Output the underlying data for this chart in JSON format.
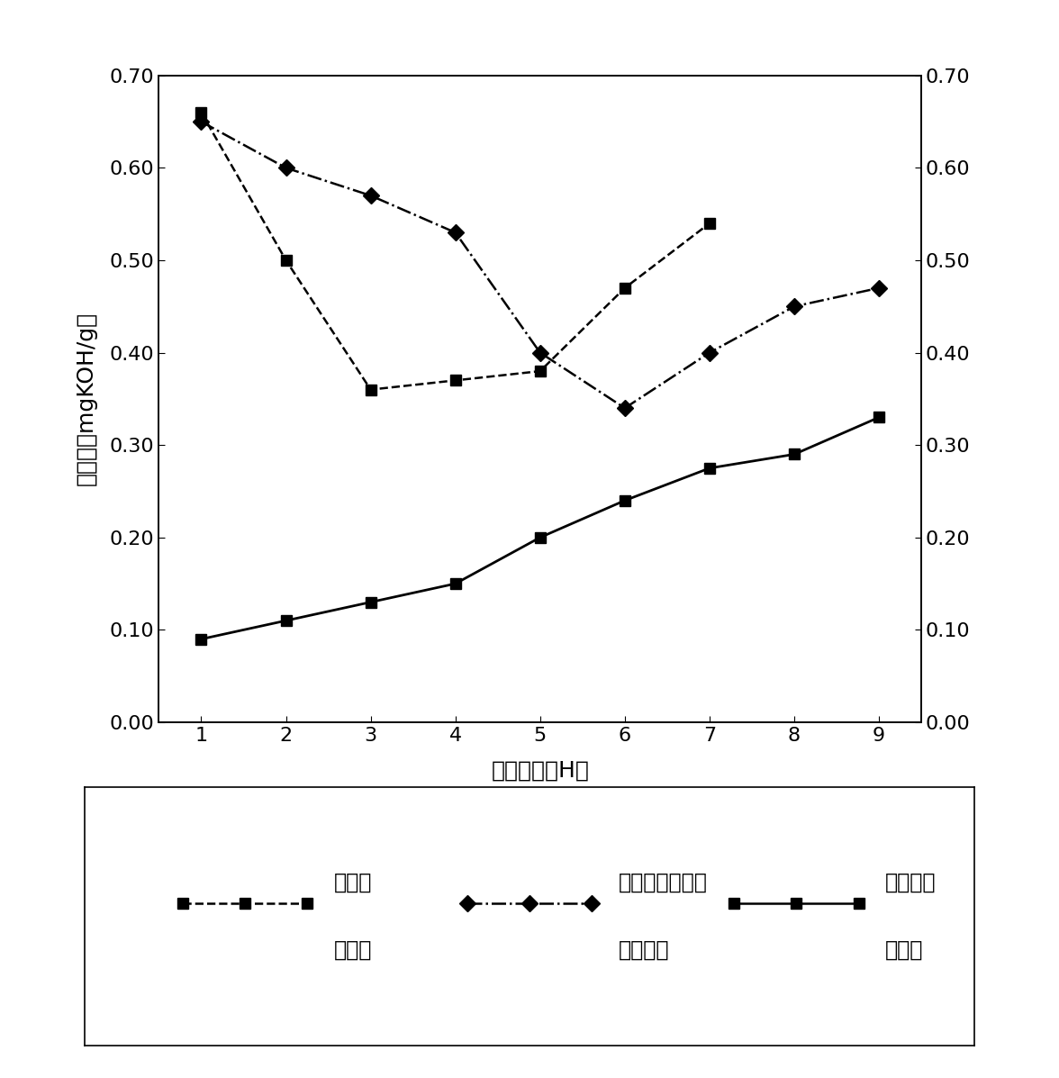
{
  "x": [
    1,
    2,
    3,
    4,
    5,
    6,
    7,
    8,
    9
  ],
  "series1_y": [
    0.66,
    0.5,
    0.36,
    0.37,
    0.38,
    0.47,
    0.54,
    null,
    null
  ],
  "series2_y": [
    0.65,
    0.6,
    0.57,
    0.53,
    0.4,
    0.34,
    0.4,
    0.45,
    0.47
  ],
  "series3_y": [
    0.09,
    0.11,
    0.13,
    0.15,
    0.2,
    0.24,
    0.275,
    0.29,
    0.33
  ],
  "xlabel": "使用時間（H）",
  "ylabel": "全酸価（mgKOH/g）",
  "ylim": [
    0.0,
    0.7
  ],
  "yticks": [
    0.0,
    0.1,
    0.2,
    0.3,
    0.4,
    0.5,
    0.6,
    0.7
  ],
  "xlim": [
    0.5,
    9.5
  ],
  "xticks": [
    1,
    2,
    3,
    4,
    5,
    6,
    7,
    8,
    9
  ],
  "legend_label1_line1": "亜鉘系",
  "legend_label1_line2": "作動油",
  "legend_label2_line1": "分散剥添加亜鉘",
  "legend_label2_line2": "系作動油",
  "legend_label3_line1": "非亜鉘系",
  "legend_label3_line2": "作動油",
  "bg_color": "#ffffff",
  "font_size_label": 18,
  "font_size_tick": 16,
  "font_size_legend": 17
}
